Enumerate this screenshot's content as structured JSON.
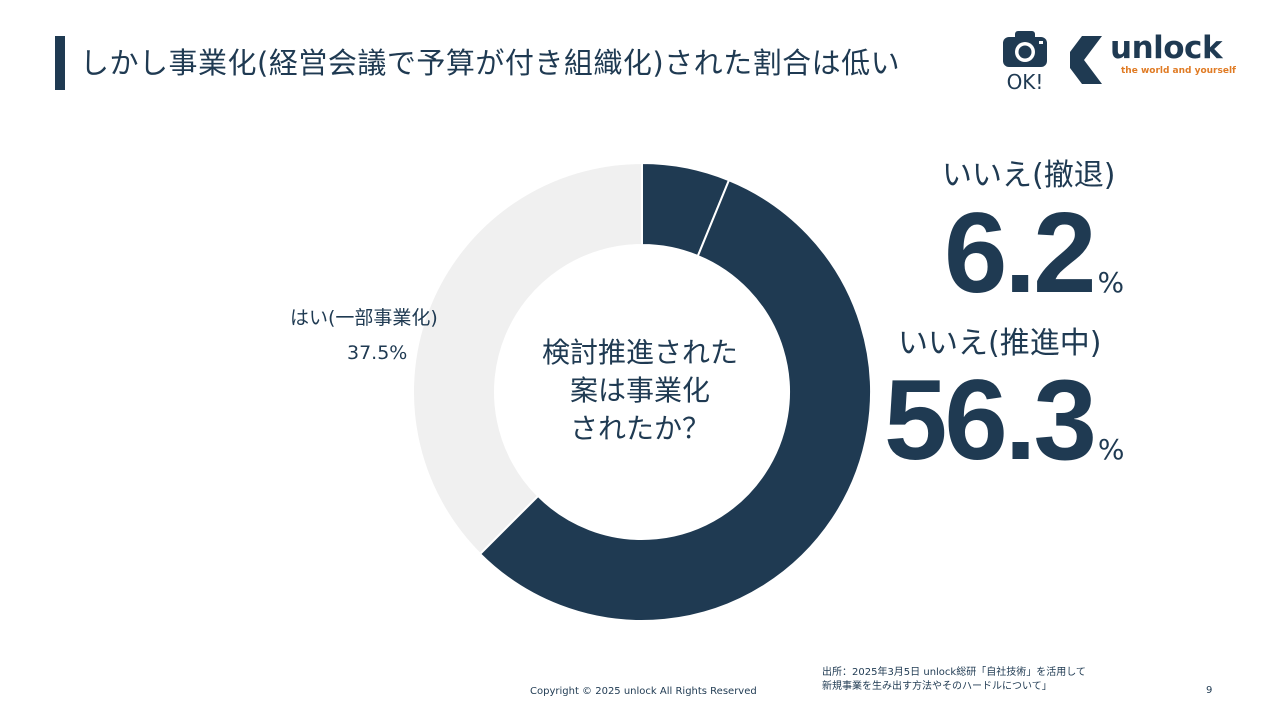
{
  "slide": {
    "title": "しかし事業化(経営会議で予算が付き組織化)された割合は低い",
    "camera_label": "OK!",
    "logo": {
      "word": "unlock",
      "tagline": "the world and yourself"
    },
    "source_line1": "出所：2025年3月5日 unlock総研「自社技術」を活用して",
    "source_line2": "新規事業を生み出す方法やそのハードルについて」",
    "copyright": "Copyright © 2025 unlock All Rights Reserved",
    "page_number": "9"
  },
  "chart_data": {
    "type": "pie",
    "donut": true,
    "center_text": [
      "検討推進された",
      "案は事業化",
      "されたか？"
    ],
    "unit": "%",
    "slices": [
      {
        "label": "いいえ(撤退)",
        "value": 6.2,
        "value_text": "6.2",
        "color": "#1f3a52"
      },
      {
        "label": "いいえ(推進中)",
        "value": 56.3,
        "value_text": "56.3",
        "color": "#1f3a52"
      },
      {
        "label": "はい(一部事業化)",
        "value": 37.5,
        "value_text": "37.5%",
        "color": "#f0f0f0"
      }
    ]
  }
}
